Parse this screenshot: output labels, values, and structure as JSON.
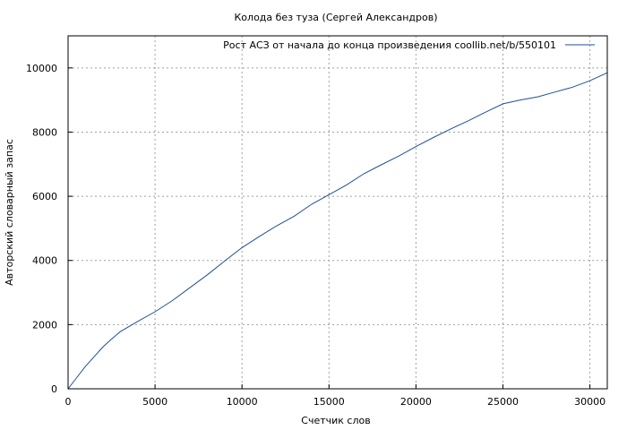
{
  "chart_data": {
    "type": "line",
    "title": "Колода без туза (Сергей Александров)",
    "xlabel": "Счетчик слов",
    "ylabel": "Авторский словарный запас",
    "xlim": [
      0,
      31000
    ],
    "ylim": [
      0,
      11000
    ],
    "x_ticks": [
      0,
      5000,
      10000,
      15000,
      20000,
      25000,
      30000
    ],
    "y_ticks": [
      0,
      2000,
      4000,
      6000,
      8000,
      10000
    ],
    "grid": true,
    "legend_position": "top-right",
    "line_color": "#1f4e9c",
    "series": [
      {
        "name": "Рост АСЗ от начала до конца произведения coollib.net/b/550101",
        "x": [
          0,
          500,
          1000,
          1500,
          2000,
          2500,
          3000,
          4000,
          5000,
          6000,
          7000,
          8000,
          9000,
          10000,
          11000,
          12000,
          13000,
          14000,
          15000,
          16000,
          17000,
          18000,
          19000,
          20000,
          21000,
          22000,
          23000,
          24000,
          25000,
          26000,
          27000,
          28000,
          29000,
          30000,
          31000
        ],
        "values": [
          0,
          350,
          700,
          1000,
          1300,
          1550,
          1780,
          2100,
          2400,
          2750,
          3150,
          3550,
          3980,
          4400,
          4750,
          5080,
          5380,
          5750,
          6050,
          6350,
          6700,
          6980,
          7250,
          7550,
          7830,
          8100,
          8350,
          8620,
          8880,
          9000,
          9100,
          9250,
          9400,
          9600,
          9850
        ]
      }
    ]
  }
}
